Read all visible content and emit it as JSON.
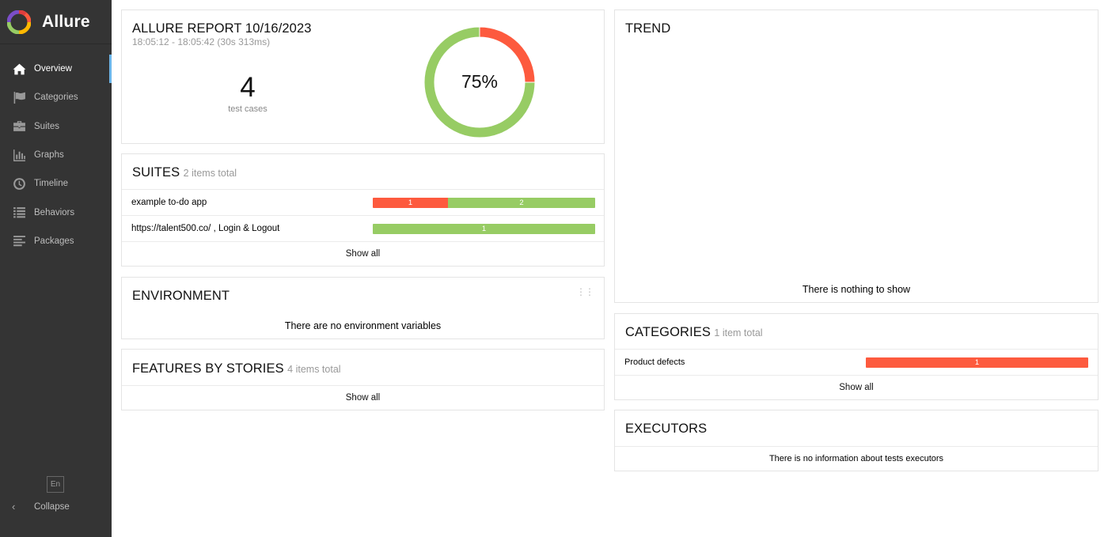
{
  "app": {
    "name": "Allure"
  },
  "sidebar": {
    "items": [
      {
        "label": "Overview",
        "icon": "home-icon",
        "active": true
      },
      {
        "label": "Categories",
        "icon": "flag-icon",
        "active": false
      },
      {
        "label": "Suites",
        "icon": "briefcase-icon",
        "active": false
      },
      {
        "label": "Graphs",
        "icon": "bar-chart-icon",
        "active": false
      },
      {
        "label": "Timeline",
        "icon": "clock-icon",
        "active": false
      },
      {
        "label": "Behaviors",
        "icon": "list-icon",
        "active": false
      },
      {
        "label": "Packages",
        "icon": "align-left-icon",
        "active": false
      }
    ],
    "language": "En",
    "collapse": "Collapse"
  },
  "summary": {
    "title": "ALLURE REPORT 10/16/2023",
    "time": "18:05:12 - 18:05:42 (30s 313ms)",
    "count": "4",
    "count_label": "test cases",
    "percent": "75%",
    "passed_fraction": 0.75,
    "failed_fraction": 0.25
  },
  "suites": {
    "title": "SUITES",
    "subtitle": "2 items total",
    "rows": [
      {
        "name": "example to-do app",
        "failed": 1,
        "passed": 2
      },
      {
        "name": "https://talent500.co/ , Login & Logout",
        "failed": 0,
        "passed": 1
      }
    ],
    "show_all": "Show all"
  },
  "environment": {
    "title": "ENVIRONMENT",
    "empty": "There are no environment variables"
  },
  "features": {
    "title": "FEATURES BY STORIES",
    "subtitle": "4 items total",
    "show_all": "Show all"
  },
  "trend": {
    "title": "TREND",
    "empty": "There is nothing to show"
  },
  "categories": {
    "title": "CATEGORIES",
    "subtitle": "1 item total",
    "rows": [
      {
        "name": "Product defects",
        "failed": 1
      }
    ],
    "show_all": "Show all"
  },
  "executors": {
    "title": "EXECUTORS",
    "empty": "There is no information about tests executors"
  },
  "colors": {
    "failed": "#fd5a3e",
    "passed": "#97cc64",
    "sidebar": "#343434",
    "active_marker": "#6bb5e9"
  }
}
